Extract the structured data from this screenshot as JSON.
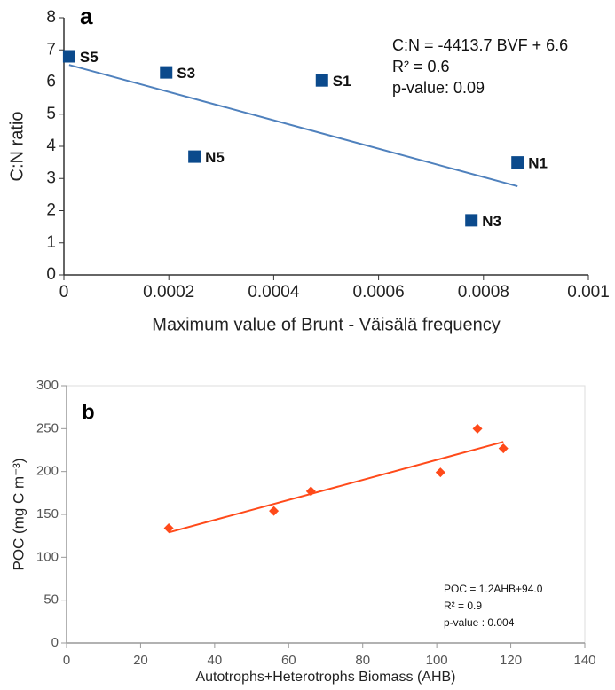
{
  "chart_data": [
    {
      "type": "scatter",
      "panel_label": "a",
      "x_label": "Maximum value of Brunt - Väisälä frequency",
      "y_label": "C:N ratio",
      "x": [
        1e-05,
        0.000195,
        0.000492,
        0.000249,
        0.000865,
        0.000777
      ],
      "values": [
        6.8,
        6.3,
        6.05,
        3.68,
        3.5,
        1.7
      ],
      "labels": [
        "S5",
        "S3",
        "S1",
        "N5",
        "N1",
        "N3"
      ],
      "color": "#0b4a8c",
      "marker": "square",
      "trendline_color": "#4f81bd",
      "xlim": [
        0,
        0.001
      ],
      "xticks": [
        0,
        0.0002,
        0.0004,
        0.0006,
        0.0008,
        0.001
      ],
      "ylim": [
        0,
        8
      ],
      "yticks": [
        0,
        1,
        2,
        3,
        4,
        5,
        6,
        7,
        8
      ],
      "annotations": [
        "C:N = -4413.7 BVF + 6.6",
        "R² = 0.6",
        "p-value: 0.09"
      ]
    },
    {
      "type": "scatter",
      "panel_label": "b",
      "x_label": "Autotrophs+Heterotrophs Biomass (AHB)",
      "y_label": "POC (mg C m⁻³)",
      "x": [
        27.6,
        56,
        66,
        101,
        111,
        118
      ],
      "values": [
        134,
        154,
        177,
        199,
        250,
        227
      ],
      "color": "#ff4a1a",
      "marker": "diamond",
      "trendline_color": "#ff4a1a",
      "xlim": [
        0,
        140
      ],
      "xticks": [
        0,
        20,
        40,
        60,
        80,
        100,
        120,
        140
      ],
      "ylim": [
        0,
        300
      ],
      "yticks": [
        0,
        50,
        100,
        150,
        200,
        250,
        300
      ],
      "annotations": [
        "POC = 1.2AHB+94.0",
        "R² = 0.9",
        "p-value : 0.004"
      ]
    }
  ]
}
